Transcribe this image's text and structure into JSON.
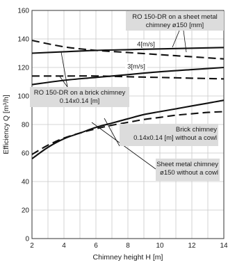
{
  "chart_data": {
    "type": "line",
    "xlabel": "Chimney height H [m]",
    "ylabel": "Efficiency Q [m³/h]",
    "xlim": [
      2,
      14
    ],
    "ylim": [
      0,
      160
    ],
    "xticks": [
      "2",
      "4",
      "6",
      "8",
      "10",
      "12",
      "14"
    ],
    "yticks": [
      "0",
      "20",
      "40",
      "60",
      "80",
      "100",
      "120",
      "140",
      "160"
    ],
    "grid": true,
    "series": [
      {
        "name": "RO 150-DR on a sheet metal chimney ø150 [mm] – 4[m/s]",
        "style": "solid",
        "x": [
          2,
          4,
          6,
          8,
          10,
          12,
          14
        ],
        "y": [
          130,
          131,
          132,
          132.5,
          133,
          133.5,
          134
        ]
      },
      {
        "name": "RO 150-DR on a brick chimney 0.14x0.14 [m] – 4[m/s]",
        "style": "dashed",
        "x": [
          2,
          4,
          6,
          8,
          10,
          12,
          14
        ],
        "y": [
          139,
          134.5,
          132,
          130.5,
          129,
          127.5,
          126
        ]
      },
      {
        "name": "RO 150-DR on a sheet metal chimney ø150 [mm] – 3[m/s]",
        "style": "solid",
        "x": [
          2,
          4,
          6,
          8,
          10,
          12,
          14
        ],
        "y": [
          108,
          111,
          113,
          115,
          117,
          118.5,
          120
        ]
      },
      {
        "name": "RO 150-DR on a brick chimney 0.14x0.14 [m] – 3[m/s]",
        "style": "dashed",
        "x": [
          2,
          4,
          6,
          8,
          10,
          12,
          14
        ],
        "y": [
          114,
          114,
          114,
          113.5,
          113,
          112.5,
          112
        ]
      },
      {
        "name": "Sheet metal chimney ø150 without a cowl",
        "style": "solid",
        "x": [
          2,
          3,
          4,
          5,
          6,
          7,
          8,
          9,
          10,
          11,
          12,
          13,
          14
        ],
        "y": [
          56,
          64,
          70,
          74,
          78,
          81,
          84,
          87,
          89,
          91,
          93,
          95,
          97
        ]
      },
      {
        "name": "Brick chimney 0.14x0.14 [m] without a cowl",
        "style": "dashed",
        "x": [
          2,
          3,
          4,
          5,
          6,
          7,
          8,
          9,
          10,
          11,
          12,
          13,
          14
        ],
        "y": [
          59,
          65.5,
          70.5,
          74,
          77,
          79.5,
          81.5,
          83.5,
          85,
          86.5,
          87.5,
          88.5,
          89
        ]
      }
    ],
    "annotations": {
      "metal_cowl": [
        "RO 150-DR on a sheet metal",
        "chimney ø150 [mm]"
      ],
      "brick_cowl": [
        "RO 150-DR on a brick chimney",
        "0.14x0.14 [m]"
      ],
      "brick_no_cowl": [
        "Brick chimney",
        "0.14x0.14 [m] without a cowl"
      ],
      "metal_no_cowl": [
        "Sheet metal chimney",
        "ø150 without a cowl"
      ],
      "speed_4": "4[m/s]",
      "speed_3": "3[m/s]"
    }
  }
}
